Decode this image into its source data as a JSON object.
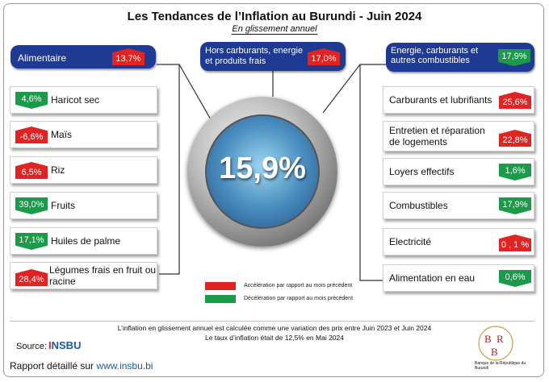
{
  "title": "Les Tendances de l’Inflation au Burundi - Juin 2024",
  "subtitle": "En glissement annuel",
  "headline_value": "15,9%",
  "categories": {
    "alimentaire": {
      "label": "Alimentaire",
      "value": "13,7%",
      "trend": "up"
    },
    "hors": {
      "label": "Hors carburants, energie et produits frais",
      "value": "17,0%",
      "trend": "up"
    },
    "energie": {
      "label": "Energie, carburants et autres combustibles",
      "value": "17,9%",
      "trend": "down"
    }
  },
  "left_items": [
    {
      "label": "Haricot sec",
      "value": "4,6%",
      "trend": "down"
    },
    {
      "label": "Maïs",
      "value": "-6,6%",
      "trend": "up"
    },
    {
      "label": "Riz",
      "value": "6,5%",
      "trend": "up"
    },
    {
      "label": "Fruits",
      "value": "39,0%",
      "trend": "down"
    },
    {
      "label": "Huiles de palme",
      "value": "17,1%",
      "trend": "down"
    },
    {
      "label": "Légumes frais en fruit ou racine",
      "value": "28,4%",
      "trend": "up"
    }
  ],
  "right_items": [
    {
      "label": "Carburants et lubrifiants",
      "value": "25,6%",
      "trend": "up"
    },
    {
      "label": "Entretien et réparation de logements",
      "value": "22,8%",
      "trend": "up"
    },
    {
      "label": "Loyers effectifs",
      "value": "1,6%",
      "trend": "down"
    },
    {
      "label": "Combustibles",
      "value": "17,9%",
      "trend": "down"
    },
    {
      "label": "Electricité",
      "value": "0 , 1 %",
      "trend": "up"
    },
    {
      "label": "Alimentation en eau",
      "value": "0,6%",
      "trend": "down"
    }
  ],
  "legend": {
    "accel": "Accélération par rapport au mois précédent",
    "decel": "Décélération par rapport au mois précédent"
  },
  "notes": {
    "line1": "L’inflation en glissement annuel est calculée comme une variation des prix entre Juin 2023 et Juin  2024",
    "line2": "Le taux d’inflation était de 12,5% en Mai 2024"
  },
  "source": {
    "label": "Source:",
    "org_i": "I",
    "org_rest": "NSBU"
  },
  "report": {
    "label": "Rapport détaillé sur",
    "link": "www.insbu.bi"
  },
  "brb": {
    "caption": "Banque de la République du Burundi"
  },
  "colors": {
    "accel": "#e32322",
    "decel": "#1b9a4a",
    "header": "#1f3a93"
  }
}
